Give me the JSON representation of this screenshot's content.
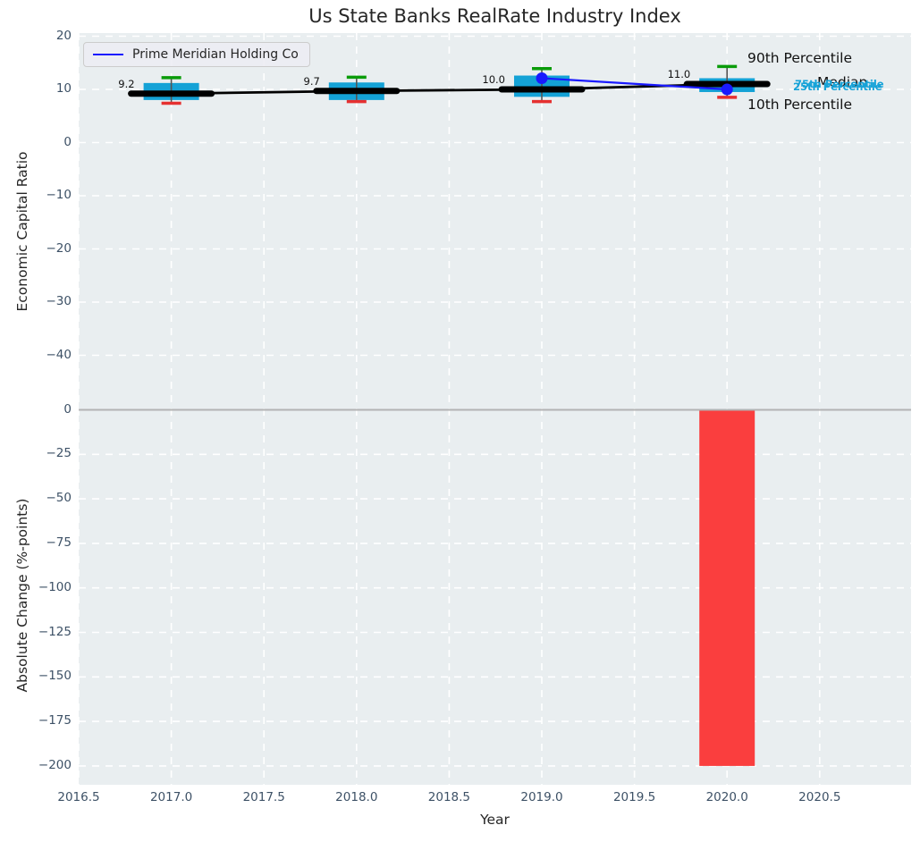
{
  "title": "Us State Banks RealRate Industry Index",
  "legend": {
    "label": "Prime Meridian Holding Co"
  },
  "annotations": {
    "p90": "90th Percentile",
    "median": "Median",
    "p75": "75th Percentile",
    "p25": "25th Percentile",
    "p10": "10th Percentile"
  },
  "colors": {
    "box_fill": "#14a2d6",
    "cap_high": "#0a9c0a",
    "cap_low": "#e53030",
    "whisker": "#555555",
    "median_line": "#000000",
    "company_line": "#1a1aff",
    "bar_negative": "#fa3e3e",
    "zero_line": "#b3b3b3",
    "grid": "#ffffff",
    "cyan_label": "#17a3d8",
    "tick_label": "#3d5166",
    "plot_bg": "#e9eef0"
  },
  "chart_data": [
    {
      "type": "boxplot",
      "title": "Us State Banks RealRate Industry Index",
      "ylabel": "Economic Capital Ratio",
      "ylim": [
        -44.3,
        20.6
      ],
      "grid": true,
      "legend_position": "upper left",
      "yticks": [
        {
          "v": 20,
          "label": "20"
        },
        {
          "v": 10,
          "label": "10"
        },
        {
          "v": 0,
          "label": "0"
        },
        {
          "v": -10,
          "label": "−10"
        },
        {
          "v": -20,
          "label": "−20"
        },
        {
          "v": -30,
          "label": "−30"
        },
        {
          "v": -40,
          "label": "−40"
        }
      ],
      "boxes": [
        {
          "x": 2017,
          "p10": 7.4,
          "q25": 8.0,
          "median": 9.2,
          "q75": 11.2,
          "p90": 12.2,
          "label": "9.2"
        },
        {
          "x": 2018,
          "p10": 7.7,
          "q25": 8.0,
          "median": 9.7,
          "q75": 11.3,
          "p90": 12.3,
          "label": "9.7"
        },
        {
          "x": 2019,
          "p10": 7.7,
          "q25": 8.6,
          "median": 10.0,
          "q75": 12.6,
          "p90": 13.9,
          "label": "10.0"
        },
        {
          "x": 2020,
          "p10": 8.5,
          "q25": 9.5,
          "median": 11.0,
          "q75": 12.1,
          "p90": 14.3,
          "label": "11.0"
        }
      ],
      "company_series": {
        "name": "Prime Meridian Holding Co",
        "points": [
          {
            "x": 2019,
            "y": 12.1
          },
          {
            "x": 2020,
            "y": 10.0
          }
        ]
      }
    },
    {
      "type": "bar",
      "ylabel": "Absolute Change (%-points)",
      "xlabel": "Year",
      "ylim": [
        -210.6,
        17.8
      ],
      "grid": true,
      "yticks": [
        {
          "v": 0,
          "label": "0"
        },
        {
          "v": -25,
          "label": "−25"
        },
        {
          "v": -50,
          "label": "−50"
        },
        {
          "v": -75,
          "label": "−75"
        },
        {
          "v": -100,
          "label": "−100"
        },
        {
          "v": -125,
          "label": "−125"
        },
        {
          "v": -150,
          "label": "−150"
        },
        {
          "v": -175,
          "label": "−175"
        },
        {
          "v": -200,
          "label": "−200"
        }
      ],
      "xticks": [
        {
          "v": 2016.5,
          "label": "2016.5"
        },
        {
          "v": 2017.0,
          "label": "2017.0"
        },
        {
          "v": 2017.5,
          "label": "2017.5"
        },
        {
          "v": 2018.0,
          "label": "2018.0"
        },
        {
          "v": 2018.5,
          "label": "2018.5"
        },
        {
          "v": 2019.0,
          "label": "2019.0"
        },
        {
          "v": 2019.5,
          "label": "2019.5"
        },
        {
          "v": 2020.0,
          "label": "2020.0"
        },
        {
          "v": 2020.5,
          "label": "2020.5"
        }
      ],
      "bars": [
        {
          "x": 2020,
          "value": -200
        }
      ]
    }
  ]
}
